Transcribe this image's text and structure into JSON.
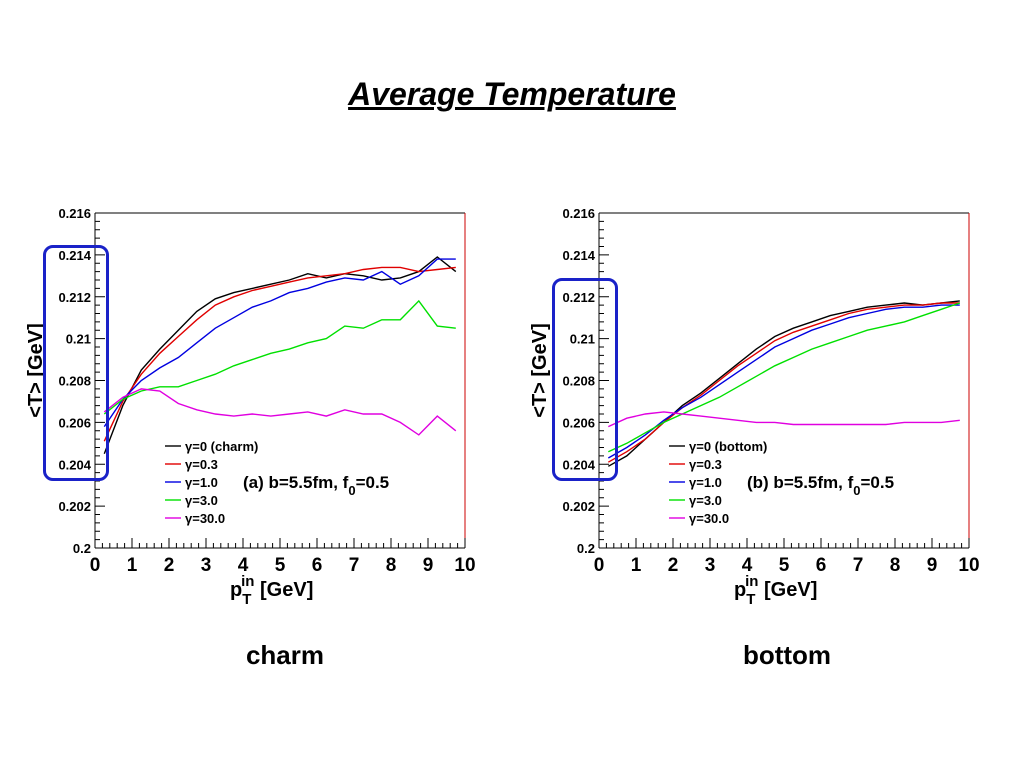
{
  "slide": {
    "title": "Average Temperature",
    "captions": [
      "charm",
      "bottom"
    ]
  },
  "colors": {
    "gamma0": "#000000",
    "gamma0_3": "#e00000",
    "gamma1_0": "#0000e0",
    "gamma3_0": "#00e000",
    "gamma30_0": "#e000e0",
    "highlight_box": "#1a22c8",
    "frame": "#000000",
    "frame_right_edge": "#cc0000"
  },
  "chart_data": [
    {
      "type": "line",
      "panel_label": "(a) b=5.5fm, f",
      "panel_label_sub": "0",
      "panel_label_tail": "=0.5",
      "xlabel_main": "p",
      "xlabel_sub": "T",
      "xlabel_sup": "in",
      "xlabel_tail": " [GeV]",
      "ylabel": "<T> [GeV]",
      "xlim": [
        0,
        10
      ],
      "ylim": [
        0.2,
        0.216
      ],
      "xticks": [
        "0",
        "1",
        "2",
        "3",
        "4",
        "5",
        "6",
        "7",
        "8",
        "9",
        "10"
      ],
      "yticks": [
        "0.2",
        "0.202",
        "0.204",
        "0.206",
        "0.208",
        "0.21",
        "0.212",
        "0.214",
        "0.216"
      ],
      "legend_position": "lower-center",
      "x": [
        0.25,
        0.75,
        1.25,
        1.75,
        2.25,
        2.75,
        3.25,
        3.75,
        4.25,
        4.75,
        5.25,
        5.75,
        6.25,
        6.75,
        7.25,
        7.75,
        8.25,
        8.75,
        9.25,
        9.75
      ],
      "series": [
        {
          "name": "γ=0 (charm)",
          "color_key": "gamma0",
          "values": [
            0.2045,
            0.2068,
            0.2085,
            0.2095,
            0.2104,
            0.2113,
            0.2119,
            0.2122,
            0.2124,
            0.2126,
            0.2128,
            0.2131,
            0.2129,
            0.2131,
            0.213,
            0.2128,
            0.2129,
            0.2132,
            0.2139,
            0.2132
          ]
        },
        {
          "name": "γ=0.3",
          "color_key": "gamma0_3",
          "values": [
            0.2051,
            0.207,
            0.2083,
            0.2093,
            0.2101,
            0.2109,
            0.2116,
            0.212,
            0.2123,
            0.2125,
            0.2127,
            0.2129,
            0.213,
            0.2131,
            0.2133,
            0.2134,
            0.2134,
            0.2132,
            0.2133,
            0.2134
          ]
        },
        {
          "name": "γ=1.0",
          "color_key": "gamma1_0",
          "values": [
            0.2058,
            0.2071,
            0.208,
            0.2086,
            0.2091,
            0.2098,
            0.2105,
            0.211,
            0.2115,
            0.2118,
            0.2122,
            0.2124,
            0.2127,
            0.2129,
            0.2128,
            0.2132,
            0.2126,
            0.213,
            0.2138,
            0.2138
          ]
        },
        {
          "name": "γ=3.0",
          "color_key": "gamma3_0",
          "values": [
            0.2064,
            0.2071,
            0.2075,
            0.2077,
            0.2077,
            0.208,
            0.2083,
            0.2087,
            0.209,
            0.2093,
            0.2095,
            0.2098,
            0.21,
            0.2106,
            0.2105,
            0.2109,
            0.2109,
            0.2118,
            0.2106,
            0.2105
          ]
        },
        {
          "name": "γ=30.0",
          "color_key": "gamma30_0",
          "values": [
            0.2065,
            0.2072,
            0.2076,
            0.2075,
            0.2069,
            0.2066,
            0.2064,
            0.2063,
            0.2064,
            0.2063,
            0.2064,
            0.2065,
            0.2063,
            0.2066,
            0.2064,
            0.2064,
            0.206,
            0.2054,
            0.2063,
            0.2056
          ]
        }
      ]
    },
    {
      "type": "line",
      "panel_label": "(b) b=5.5fm, f",
      "panel_label_sub": "0",
      "panel_label_tail": "=0.5",
      "xlabel_main": "p",
      "xlabel_sub": "T",
      "xlabel_sup": "in",
      "xlabel_tail": " [GeV]",
      "ylabel": "<T> [GeV]",
      "xlim": [
        0,
        10
      ],
      "ylim": [
        0.2,
        0.216
      ],
      "xticks": [
        "0",
        "1",
        "2",
        "3",
        "4",
        "5",
        "6",
        "7",
        "8",
        "9",
        "10"
      ],
      "yticks": [
        "0.2",
        "0.202",
        "0.204",
        "0.206",
        "0.208",
        "0.21",
        "0.212",
        "0.214",
        "0.216"
      ],
      "legend_position": "lower-center",
      "x": [
        0.25,
        0.75,
        1.25,
        1.75,
        2.25,
        2.75,
        3.25,
        3.75,
        4.25,
        4.75,
        5.25,
        5.75,
        6.25,
        6.75,
        7.25,
        7.75,
        8.25,
        8.75,
        9.25,
        9.75
      ],
      "series": [
        {
          "name": "γ=0 (bottom)",
          "color_key": "gamma0",
          "values": [
            0.2039,
            0.2044,
            0.2052,
            0.206,
            0.2068,
            0.2074,
            0.2081,
            0.2088,
            0.2095,
            0.2101,
            0.2105,
            0.2108,
            0.2111,
            0.2113,
            0.2115,
            0.2116,
            0.2117,
            0.2116,
            0.2117,
            0.2118
          ]
        },
        {
          "name": "γ=0.3",
          "color_key": "gamma0_3",
          "values": [
            0.2041,
            0.2046,
            0.2052,
            0.206,
            0.2067,
            0.2073,
            0.208,
            0.2087,
            0.2093,
            0.2099,
            0.2103,
            0.2106,
            0.2109,
            0.2112,
            0.2114,
            0.2115,
            0.2116,
            0.2116,
            0.2117,
            0.2117
          ]
        },
        {
          "name": "γ=1.0",
          "color_key": "gamma1_0",
          "values": [
            0.2043,
            0.2048,
            0.2054,
            0.2061,
            0.2067,
            0.2072,
            0.2078,
            0.2084,
            0.209,
            0.2096,
            0.21,
            0.2104,
            0.2107,
            0.211,
            0.2112,
            0.2114,
            0.2115,
            0.2115,
            0.2116,
            0.2116
          ]
        },
        {
          "name": "γ=3.0",
          "color_key": "gamma3_0",
          "values": [
            0.2046,
            0.205,
            0.2055,
            0.206,
            0.2064,
            0.2068,
            0.2072,
            0.2077,
            0.2082,
            0.2087,
            0.2091,
            0.2095,
            0.2098,
            0.2101,
            0.2104,
            0.2106,
            0.2108,
            0.2111,
            0.2114,
            0.2117
          ]
        },
        {
          "name": "γ=30.0",
          "color_key": "gamma30_0",
          "values": [
            0.2058,
            0.2062,
            0.2064,
            0.2065,
            0.2064,
            0.2063,
            0.2062,
            0.2061,
            0.206,
            0.206,
            0.2059,
            0.2059,
            0.2059,
            0.2059,
            0.2059,
            0.2059,
            0.206,
            0.206,
            0.206,
            0.2061
          ]
        }
      ]
    }
  ]
}
